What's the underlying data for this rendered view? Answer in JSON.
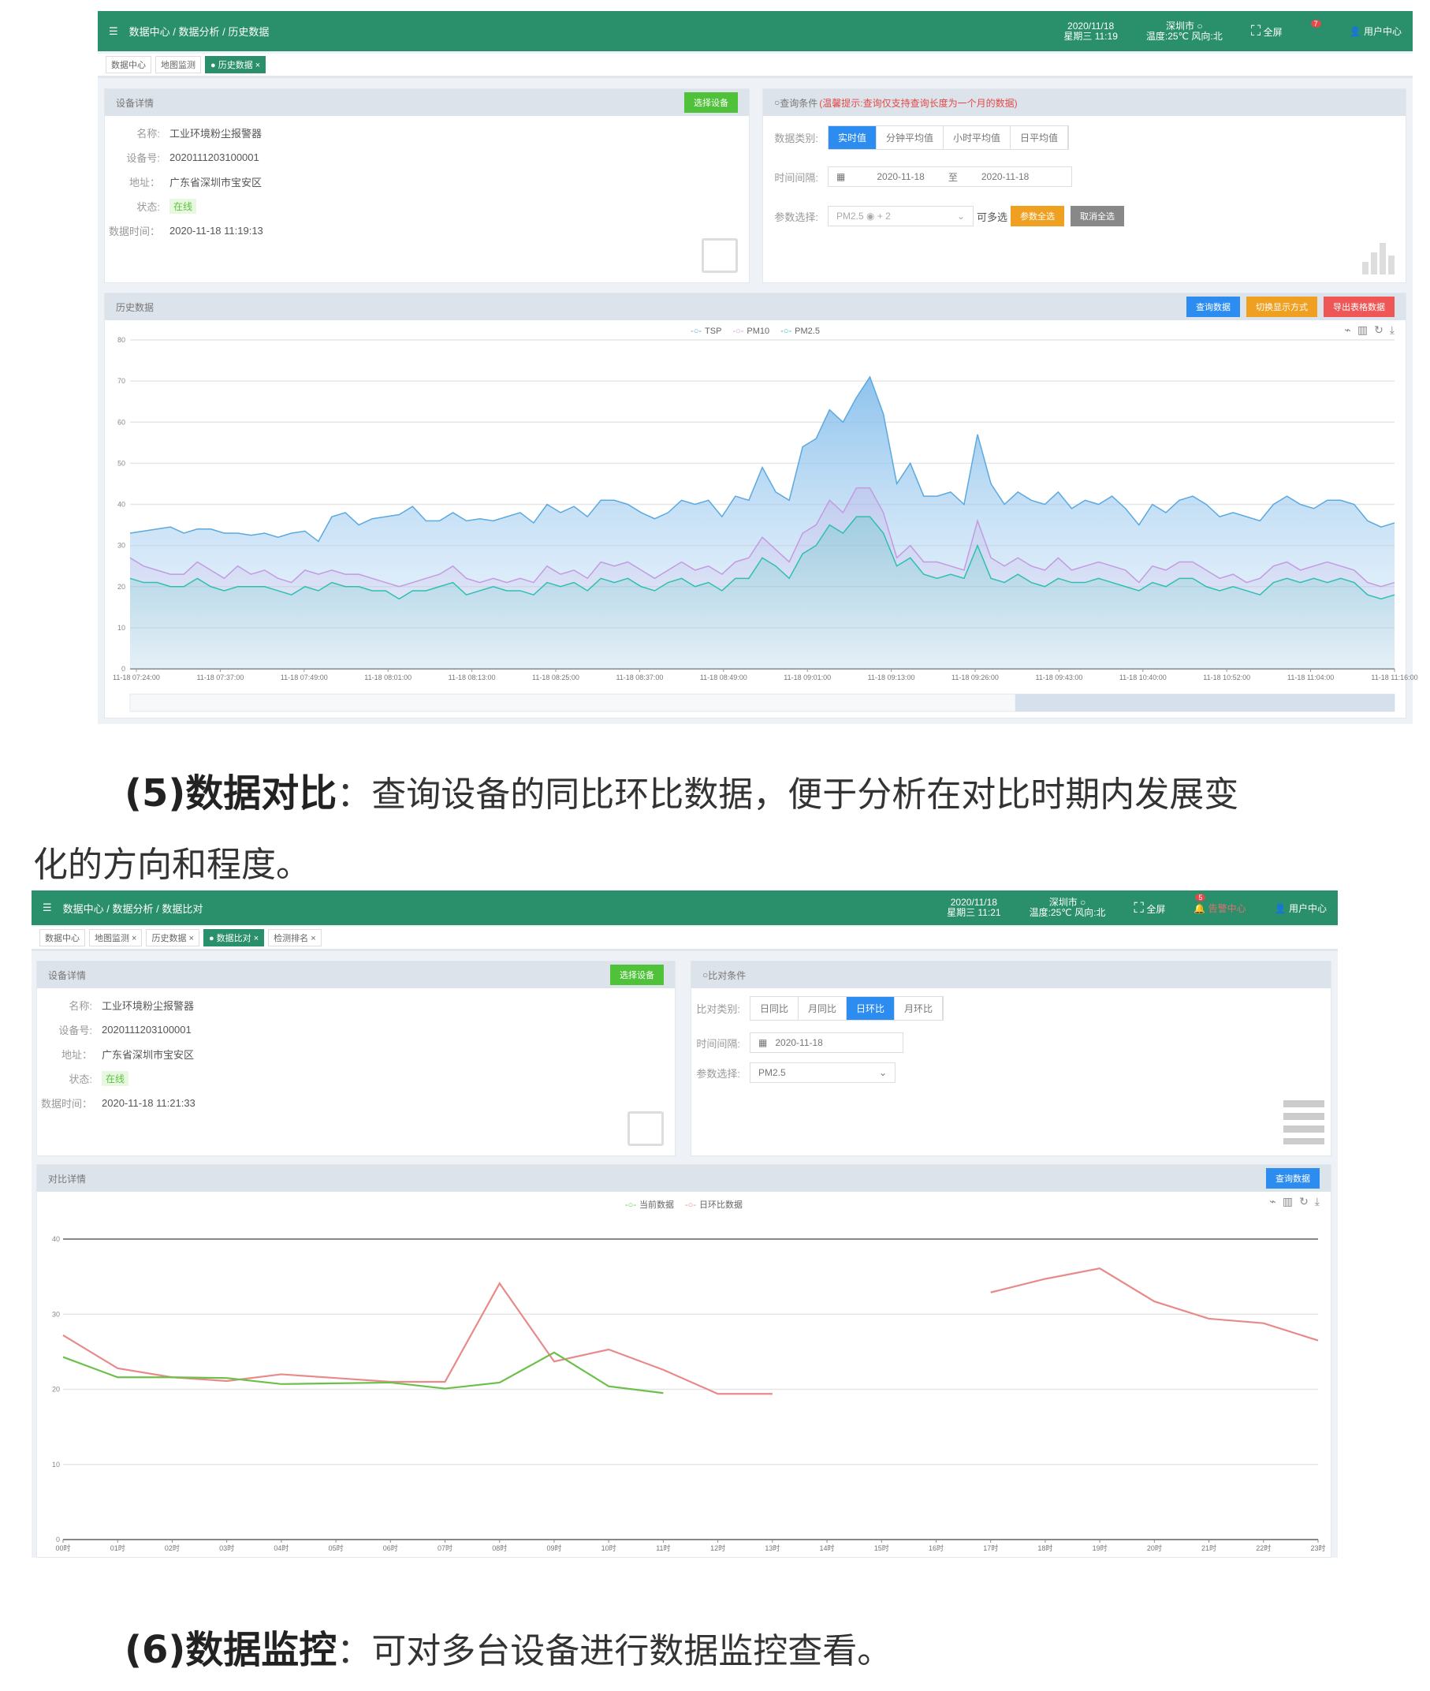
{
  "history_screen": {
    "header": {
      "breadcrumb": "数据中心 / 数据分析 / 历史数据",
      "date": "2020/11/18",
      "weekday_time": "星期三 11:19",
      "city": "深圳市 ○",
      "weather": "温度:25℃ 风向:北",
      "fullscreen": "全屏",
      "notify_count": "7",
      "user": "用户中心"
    },
    "tabs": [
      "数据中心",
      "地图监测",
      "● 历史数据 ×"
    ],
    "device": {
      "title": "设备详情",
      "select_btn": "选择设备",
      "fields": [
        {
          "label": "名称:",
          "value": "工业环境粉尘报警器"
        },
        {
          "label": "设备号:",
          "value": "2020111203100001"
        },
        {
          "label": "地址：",
          "value": "广东省深圳市宝安区"
        },
        {
          "label": "状态:",
          "value": "在线"
        },
        {
          "label": "数据时间：",
          "value": "2020-11-18 11:19:13"
        }
      ]
    },
    "query": {
      "title": "查询条件",
      "tip": "(温馨提示:查询仅支持查询长度为一个月的数据)",
      "type_label": "数据类别:",
      "types": [
        "实时值",
        "分钟平均值",
        "小时平均值",
        "日平均值"
      ],
      "active_type": 0,
      "interval_label": "时间间隔:",
      "date_from": "2020-11-18",
      "date_sep": "至",
      "date_to": "2020-11-18",
      "param_label": "参数选择:",
      "param_value": "PM2.5 ◉  + 2",
      "multi": "可多选",
      "select_all": "参数全选",
      "deselect_all": "取消全选"
    },
    "history": {
      "title": "历史数据",
      "btn_query": "查询数据",
      "btn_switch": "切换显示方式",
      "btn_export": "导出表格数据"
    }
  },
  "paragraph5": {
    "head": "(5)数据对比",
    "body1": "：查询设备的同比环比数据，便于分析在对比时期内发展变",
    "body2": "化的方向和程度。"
  },
  "compare_screen": {
    "header": {
      "breadcrumb": "数据中心 / 数据分析 / 数据比对",
      "date": "2020/11/18",
      "weekday_time": "星期三 11:21",
      "city": "深圳市 ○",
      "weather": "温度:25℃ 风向:北",
      "fullscreen": "全屏",
      "notify_count": "5",
      "notify": "告警中心",
      "user": "用户中心"
    },
    "tabs": [
      "数据中心",
      "地图监测 ×",
      "历史数据 ×",
      "● 数据比对 ×",
      "检测排名 ×"
    ],
    "device": {
      "title": "设备详情",
      "select_btn": "选择设备",
      "fields": [
        {
          "label": "名称:",
          "value": "工业环境粉尘报警器"
        },
        {
          "label": "设备号:",
          "value": "2020111203100001"
        },
        {
          "label": "地址：",
          "value": "广东省深圳市宝安区"
        },
        {
          "label": "状态:",
          "value": "在线"
        },
        {
          "label": "数据时间：",
          "value": "2020-11-18 11:21:33"
        }
      ]
    },
    "condition": {
      "title": "比对条件",
      "type_label": "比对类别:",
      "types": [
        "日同比",
        "月同比",
        "日环比",
        "月环比"
      ],
      "active_type": 2,
      "interval_label": "时间间隔:",
      "date": "2020-11-18",
      "param_label": "参数选择:",
      "param_value": "PM2.5"
    },
    "details": {
      "title": "对比详情",
      "btn_query": "查询数据"
    }
  },
  "paragraph6": {
    "head": "(6)数据监控",
    "body": "：可对多台设备进行数据监控查看。"
  },
  "chart_data": [
    {
      "type": "area",
      "ylim": [
        0,
        80
      ],
      "yticks": [
        0,
        10,
        20,
        30,
        40,
        50,
        60,
        70,
        80
      ],
      "grid": true,
      "legend": "top-center",
      "xticks": [
        "11-18 07:24:00",
        "11-18 07:37:00",
        "11-18 07:49:00",
        "11-18 08:01:00",
        "11-18 08:13:00",
        "11-18 08:25:00",
        "11-18 08:37:00",
        "11-18 08:49:00",
        "11-18 09:01:00",
        "11-18 09:13:00",
        "11-18 09:26:00",
        "11-18 09:43:00",
        "11-18 10:40:00",
        "11-18 10:52:00",
        "11-18 11:04:00",
        "11-18 11:16:00"
      ],
      "series": [
        {
          "name": "TSP",
          "color": "#5aa9e0",
          "values": [
            33,
            33.5,
            34,
            34.5,
            33,
            34,
            34,
            33,
            33,
            32.5,
            33,
            32,
            33,
            33.5,
            31,
            37,
            38,
            35,
            36.5,
            37,
            37.5,
            39.5,
            36,
            36,
            38,
            36,
            36.5,
            36,
            37,
            38,
            35.5,
            40,
            38,
            39.5,
            37,
            41,
            41,
            40,
            38,
            36.5,
            38,
            41,
            40,
            41,
            37,
            42,
            41,
            49,
            43,
            41,
            54,
            56,
            63,
            60,
            66,
            71,
            62,
            45,
            50,
            42,
            42,
            43,
            40,
            57,
            45,
            40,
            43,
            41,
            40,
            43,
            39,
            41,
            40,
            42,
            39,
            35,
            40,
            38,
            41,
            42,
            40,
            37,
            38,
            37,
            36,
            40,
            42,
            40,
            39,
            41,
            41,
            40,
            36,
            34.5,
            35.5
          ]
        },
        {
          "name": "PM10",
          "color": "#c39be0",
          "values": [
            27,
            25,
            24,
            23,
            23,
            26,
            24,
            22,
            25,
            23,
            24,
            22,
            21,
            24,
            23,
            24,
            23,
            23,
            22,
            21,
            20,
            21,
            22,
            23,
            25,
            22,
            21,
            22,
            21,
            22,
            21,
            25,
            23,
            24,
            22,
            26,
            25,
            26,
            24,
            22,
            24,
            26,
            24,
            25,
            23,
            26,
            27,
            32,
            29,
            26,
            33,
            35,
            41,
            38,
            44,
            44,
            38,
            27,
            30,
            26,
            26,
            25,
            24,
            36,
            27,
            25,
            27,
            25,
            24,
            27,
            24,
            25,
            26,
            25,
            24,
            21,
            25,
            24,
            26,
            26,
            24,
            22,
            23,
            21,
            22,
            25,
            26,
            24,
            25,
            26,
            25,
            24,
            21,
            20,
            21
          ]
        },
        {
          "name": "PM2.5",
          "color": "#2fbfb0",
          "values": [
            22,
            21,
            21,
            20,
            20,
            22,
            20,
            19,
            20,
            20,
            20,
            19,
            18,
            20,
            19,
            21,
            20,
            20,
            19,
            19,
            17,
            19,
            19,
            20,
            21,
            18,
            19,
            20,
            19,
            19,
            18,
            21,
            20,
            21,
            19,
            22,
            21,
            22,
            20,
            19,
            21,
            22,
            20,
            21,
            19,
            22,
            22,
            27,
            25,
            22,
            28,
            30,
            35,
            33,
            37,
            37,
            33,
            25,
            27,
            23,
            22,
            23,
            22,
            30,
            22,
            21,
            23,
            21,
            20,
            22,
            21,
            21,
            22,
            21,
            20,
            19,
            21,
            20,
            22,
            22,
            20,
            19,
            20,
            19,
            18,
            21,
            22,
            21,
            22,
            21,
            22,
            21,
            18,
            17,
            18
          ]
        }
      ]
    },
    {
      "type": "line",
      "ylim": [
        0,
        40
      ],
      "yticks": [
        0,
        10,
        20,
        30,
        40
      ],
      "grid": true,
      "legend": "top-center",
      "categories": [
        "00时",
        "01时",
        "02时",
        "03时",
        "04时",
        "05时",
        "06时",
        "07时",
        "08时",
        "09时",
        "10时",
        "11时",
        "12时",
        "13时",
        "14时",
        "15时",
        "16时",
        "17时",
        "18时",
        "19时",
        "20时",
        "21时",
        "22时",
        "23时"
      ],
      "series": [
        {
          "name": "当前数据",
          "color": "#6cc04a",
          "values": [
            24.3,
            21.6,
            21.6,
            21.5,
            20.7,
            20.8,
            20.9,
            20.1,
            20.9,
            24.9,
            20.4,
            19.5,
            null,
            null,
            null,
            null,
            null,
            null,
            null,
            null,
            null,
            null,
            null,
            null
          ]
        },
        {
          "name": "日环比数据",
          "color": "#e88a8a",
          "values": [
            27.2,
            22.8,
            21.6,
            21.1,
            22.0,
            21.5,
            21.0,
            21.0,
            34.1,
            23.7,
            25.3,
            22.6,
            19.4,
            19.4,
            null,
            null,
            null,
            32.9,
            34.7,
            36.1,
            31.7,
            29.4,
            28.8,
            26.5
          ]
        }
      ]
    }
  ]
}
